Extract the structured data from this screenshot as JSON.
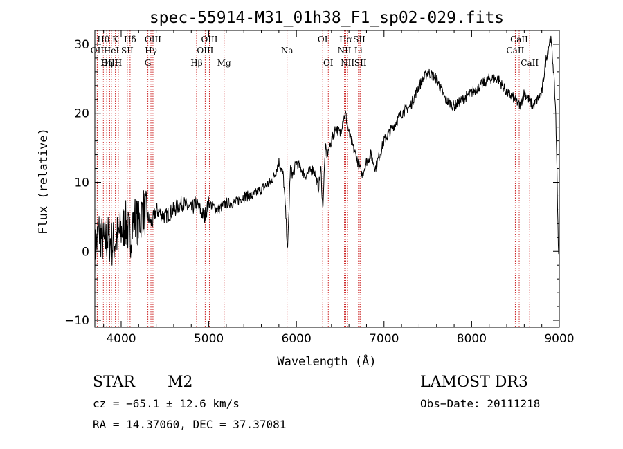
{
  "chart_data": {
    "type": "line",
    "title": "spec-55914-M31_01h38_F1_sp02-029.fits",
    "xlabel": "Wavelength (Å)",
    "ylabel": "Flux (relative)",
    "xlim": [
      3700,
      9000
    ],
    "ylim": [
      -11,
      32
    ],
    "xticks": [
      4000,
      5000,
      6000,
      7000,
      8000,
      9000
    ],
    "yticks": [
      -10,
      0,
      10,
      20,
      30
    ],
    "series": [
      {
        "name": "flux",
        "x": [
          3700,
          3750,
          3800,
          3850,
          3900,
          3950,
          4000,
          4050,
          4100,
          4150,
          4200,
          4250,
          4300,
          4350,
          4400,
          4500,
          4600,
          4700,
          4800,
          4850,
          4900,
          4950,
          5000,
          5100,
          5200,
          5300,
          5400,
          5500,
          5600,
          5700,
          5750,
          5800,
          5850,
          5880,
          5900,
          5930,
          5960,
          6000,
          6100,
          6200,
          6250,
          6280,
          6300,
          6330,
          6350,
          6400,
          6450,
          6500,
          6530,
          6560,
          6600,
          6650,
          6700,
          6750,
          6800,
          6850,
          6900,
          7000,
          7100,
          7200,
          7300,
          7400,
          7500,
          7600,
          7700,
          7800,
          7900,
          8000,
          8100,
          8200,
          8300,
          8400,
          8500,
          8550,
          8600,
          8650,
          8700,
          8750,
          8800,
          8850,
          8900,
          8930,
          8960,
          8990
        ],
        "y": [
          0,
          3,
          1,
          2,
          1,
          2,
          3,
          4,
          2,
          5,
          4,
          6,
          5,
          4,
          6,
          5,
          6,
          7,
          6,
          7,
          6,
          5,
          7,
          6,
          7,
          7,
          8,
          8,
          9,
          10,
          11,
          13,
          11,
          5,
          0,
          12,
          11,
          13,
          11,
          12,
          9,
          12,
          6,
          15,
          14,
          16,
          18,
          17,
          19,
          20,
          17,
          15,
          13,
          11,
          13,
          14,
          12,
          16,
          18,
          20,
          21,
          24,
          26,
          25,
          22,
          21,
          22,
          23,
          24,
          25,
          25,
          23,
          22,
          21,
          23,
          22,
          21,
          22,
          23,
          28,
          31,
          27,
          20,
          0
        ]
      }
    ],
    "emission_lines": [
      {
        "label": "Hθ",
        "wl": 3797,
        "row": 1
      },
      {
        "label": "OII",
        "wl": 3727,
        "row": 2
      },
      {
        "label": "OIII",
        "wl": 3869,
        "row": 3
      },
      {
        "label": "K",
        "wl": 3934,
        "row": 1
      },
      {
        "label": "HeI",
        "wl": 3889,
        "row": 2
      },
      {
        "label": "Hη",
        "wl": 3835,
        "row": 3
      },
      {
        "label": "Hδ",
        "wl": 4102,
        "row": 1
      },
      {
        "label": "SII",
        "wl": 4070,
        "row": 2
      },
      {
        "label": "H",
        "wl": 3968,
        "row": 3
      },
      {
        "label": "OIII",
        "wl": 4363,
        "row": 1
      },
      {
        "label": "Hγ",
        "wl": 4340,
        "row": 2
      },
      {
        "label": "G",
        "wl": 4305,
        "row": 3
      },
      {
        "label": "OIII",
        "wl": 5007,
        "row": 1
      },
      {
        "label": "OIII",
        "wl": 4959,
        "row": 2
      },
      {
        "label": "Hβ",
        "wl": 4861,
        "row": 3
      },
      {
        "label": "Mg",
        "wl": 5175,
        "row": 3
      },
      {
        "label": "Na",
        "wl": 5893,
        "row": 2
      },
      {
        "label": "OI",
        "wl": 6300,
        "row": 1
      },
      {
        "label": "OI",
        "wl": 6364,
        "row": 3
      },
      {
        "label": "Hα",
        "wl": 6563,
        "row": 1
      },
      {
        "label": "SII",
        "wl": 6717,
        "row": 1
      },
      {
        "label": "NII",
        "wl": 6548,
        "row": 2
      },
      {
        "label": "Li",
        "wl": 6708,
        "row": 2
      },
      {
        "label": "NII",
        "wl": 6584,
        "row": 3
      },
      {
        "label": "SII",
        "wl": 6731,
        "row": 3
      },
      {
        "label": "CaII",
        "wl": 8542,
        "row": 1
      },
      {
        "label": "CaII",
        "wl": 8498,
        "row": 2
      },
      {
        "label": "CaII",
        "wl": 8662,
        "row": 3
      }
    ]
  },
  "info": {
    "class": "STAR",
    "subclass": "M2",
    "survey": "LAMOST DR3",
    "cz": "cz = −65.1 ± 12.6 km/s",
    "obs_date": "Obs−Date: 20111218",
    "radec": "RA =  14.37060, DEC =  37.37081"
  }
}
